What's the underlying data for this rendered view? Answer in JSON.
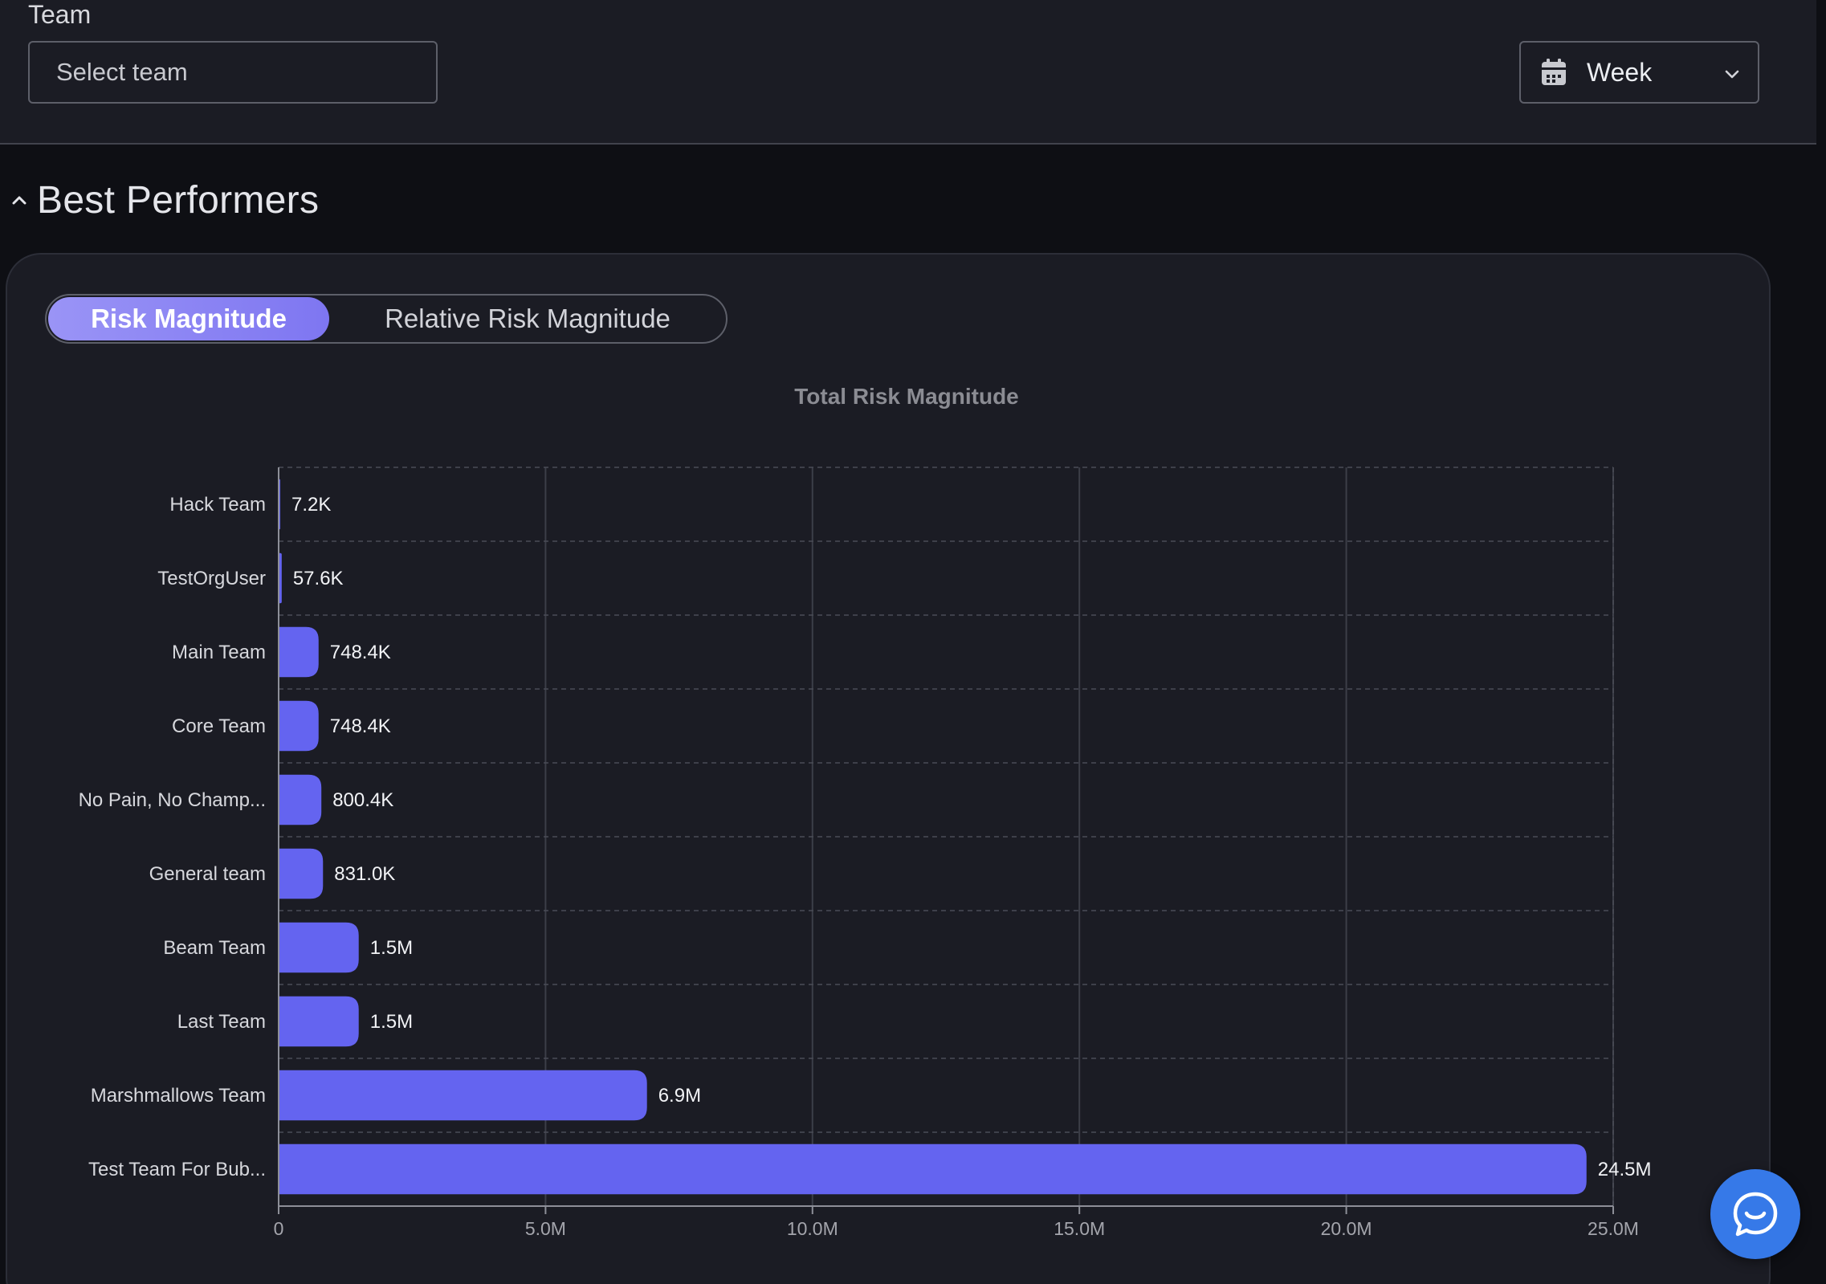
{
  "filters": {
    "team_label": "Team",
    "team_placeholder": "Select team",
    "period_value": "Week"
  },
  "section": {
    "title": "Best Performers"
  },
  "toggle": {
    "active_label": "Risk Magnitude",
    "inactive_label": "Relative Risk Magnitude"
  },
  "colors": {
    "bar": "#6464f0",
    "accent": "#8c86f3",
    "fab": "#3679e8"
  },
  "icons": {
    "period": "calendar-icon",
    "dropdown": "chevron-down-icon",
    "collapse": "chevron-up-icon",
    "chat": "chat-icon"
  },
  "chart_data": {
    "type": "bar",
    "orientation": "horizontal",
    "title": "Total Risk Magnitude",
    "categories": [
      "Hack Team",
      "TestOrgUser",
      "Main Team",
      "Core Team",
      "No Pain, No Champ...",
      "General team",
      "Beam Team",
      "Last Team",
      "Marshmallows Team",
      "Test Team For Bub..."
    ],
    "values": [
      7200,
      57600,
      748400,
      748400,
      800400,
      831000,
      1500000,
      1500000,
      6900000,
      24500000
    ],
    "value_labels": [
      "7.2K",
      "57.6K",
      "748.4K",
      "748.4K",
      "800.4K",
      "831.0K",
      "1.5M",
      "1.5M",
      "6.9M",
      "24.5M"
    ],
    "xlim": [
      0,
      25000000
    ],
    "x_ticks": [
      0,
      5000000,
      10000000,
      15000000,
      20000000,
      25000000
    ],
    "x_tick_labels": [
      "0",
      "5.0M",
      "10.0M",
      "15.0M",
      "20.0M",
      "25.0M"
    ],
    "grid": true
  }
}
